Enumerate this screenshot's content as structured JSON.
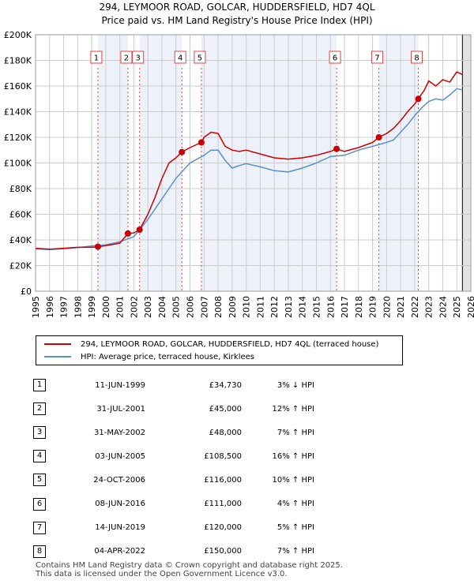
{
  "title_line1": "294, LEYMOOR ROAD, GOLCAR, HUDDERSFIELD, HD7 4QL",
  "title_line2": "Price paid vs. HM Land Registry's House Price Index (HPI)",
  "legend": {
    "property_label": "294, LEYMOOR ROAD, GOLCAR, HUDDERSFIELD, HD7 4QL (terraced house)",
    "hpi_label": "HPI: Average price, terraced house, Kirklees"
  },
  "colors": {
    "property": "#cc0000",
    "hpi": "#5b8fc9",
    "shade": "#dce6f5",
    "grid": "#cccccc"
  },
  "chart_data": {
    "type": "line",
    "title": "Price paid vs. HM Land Registry's House Price Index (HPI)",
    "xlim": [
      1995,
      2026
    ],
    "ylim": [
      0,
      200000
    ],
    "x_ticks": [
      1995,
      1996,
      1997,
      1998,
      1999,
      2000,
      2001,
      2002,
      2003,
      2004,
      2005,
      2006,
      2007,
      2008,
      2009,
      2010,
      2011,
      2012,
      2013,
      2014,
      2015,
      2016,
      2017,
      2018,
      2019,
      2020,
      2021,
      2022,
      2023,
      2024,
      2025,
      2026
    ],
    "y_ticks": [
      {
        "value": 0,
        "label": "£0"
      },
      {
        "value": 20000,
        "label": "£20K"
      },
      {
        "value": 40000,
        "label": "£40K"
      },
      {
        "value": 60000,
        "label": "£60K"
      },
      {
        "value": 80000,
        "label": "£80K"
      },
      {
        "value": 100000,
        "label": "£100K"
      },
      {
        "value": 120000,
        "label": "£120K"
      },
      {
        "value": 140000,
        "label": "£140K"
      },
      {
        "value": 160000,
        "label": "£160K"
      },
      {
        "value": 180000,
        "label": "£180K"
      },
      {
        "value": 200000,
        "label": "£200K"
      }
    ],
    "series": [
      {
        "name": "294, LEYMOOR ROAD, GOLCAR, HUDDERSFIELD, HD7 4QL (terraced house)",
        "x": [
          1995,
          1996,
          1997,
          1998,
          1999,
          1999.44,
          2000,
          2000.5,
          2001,
          2001.58,
          2002,
          2002.41,
          2003,
          2003.5,
          2004,
          2004.5,
          2005,
          2005.42,
          2006,
          2006.81,
          2007,
          2007.5,
          2008,
          2008.5,
          2009,
          2009.5,
          2010,
          2011,
          2012,
          2013,
          2014,
          2015,
          2016,
          2016.44,
          2017,
          2018,
          2019,
          2019.45,
          2020,
          2020.5,
          2021,
          2021.5,
          2022,
          2022.26,
          2022.7,
          2023,
          2023.5,
          2024,
          2024.5,
          2025,
          2025.4
        ],
        "values": [
          33500,
          32800,
          33500,
          34200,
          34200,
          34730,
          35500,
          36500,
          37500,
          45000,
          45500,
          48000,
          60000,
          73000,
          88000,
          100000,
          104000,
          108500,
          112000,
          116000,
          120000,
          124000,
          123000,
          113000,
          110000,
          109000,
          110000,
          107000,
          104000,
          103000,
          104000,
          106000,
          109000,
          111000,
          109000,
          112000,
          116000,
          120000,
          123000,
          127000,
          133000,
          140000,
          146000,
          150000,
          157000,
          164000,
          160000,
          165000,
          163000,
          171000,
          169000
        ]
      },
      {
        "name": "HPI: Average price, terraced house, Kirklees",
        "x": [
          1995,
          1996,
          1997,
          1998,
          1999,
          2000,
          2001,
          2002,
          2003,
          2004,
          2005,
          2006,
          2007,
          2007.5,
          2008,
          2008.5,
          2009,
          2009.5,
          2010,
          2011,
          2012,
          2013,
          2014,
          2015,
          2016,
          2017,
          2018,
          2019,
          2020,
          2020.5,
          2021,
          2021.5,
          2022,
          2022.5,
          2023,
          2023.5,
          2024,
          2024.5,
          2025,
          2025.4
        ],
        "values": [
          33000,
          32500,
          33200,
          34000,
          35300,
          36200,
          38500,
          42500,
          56000,
          72000,
          88000,
          100000,
          106000,
          110000,
          110000,
          102000,
          96000,
          98000,
          99500,
          97000,
          94000,
          93000,
          96000,
          100000,
          105000,
          106000,
          110000,
          113000,
          116000,
          118000,
          124000,
          130000,
          137000,
          143000,
          148000,
          150000,
          149000,
          153000,
          158000,
          157000
        ]
      }
    ],
    "sales": [
      {
        "id": "1",
        "x": 1999.44,
        "value": 34730
      },
      {
        "id": "2",
        "x": 2001.58,
        "value": 45000
      },
      {
        "id": "3",
        "x": 2002.41,
        "value": 48000
      },
      {
        "id": "4",
        "x": 2005.42,
        "value": 108500
      },
      {
        "id": "5",
        "x": 2006.81,
        "value": 116000
      },
      {
        "id": "6",
        "x": 2016.44,
        "value": 111000
      },
      {
        "id": "7",
        "x": 2019.45,
        "value": 120000
      },
      {
        "id": "8",
        "x": 2022.26,
        "value": 150000
      }
    ],
    "future_shading_from": 2025.4
  },
  "transactions": [
    {
      "num": "1",
      "date": "11-JUN-1999",
      "price": "£34,730",
      "hpi": "3% ↓ HPI"
    },
    {
      "num": "2",
      "date": "31-JUL-2001",
      "price": "£45,000",
      "hpi": "12% ↑ HPI"
    },
    {
      "num": "3",
      "date": "31-MAY-2002",
      "price": "£48,000",
      "hpi": "7% ↑ HPI"
    },
    {
      "num": "4",
      "date": "03-JUN-2005",
      "price": "£108,500",
      "hpi": "16% ↑ HPI"
    },
    {
      "num": "5",
      "date": "24-OCT-2006",
      "price": "£116,000",
      "hpi": "10% ↑ HPI"
    },
    {
      "num": "6",
      "date": "08-JUN-2016",
      "price": "£111,000",
      "hpi": "4% ↑ HPI"
    },
    {
      "num": "7",
      "date": "14-JUN-2019",
      "price": "£120,000",
      "hpi": "5% ↑ HPI"
    },
    {
      "num": "8",
      "date": "04-APR-2022",
      "price": "£150,000",
      "hpi": "7% ↑ HPI"
    }
  ],
  "footer": {
    "line1": "Contains HM Land Registry data © Crown copyright and database right 2025.",
    "line2": "This data is licensed under the Open Government Licence v3.0."
  }
}
